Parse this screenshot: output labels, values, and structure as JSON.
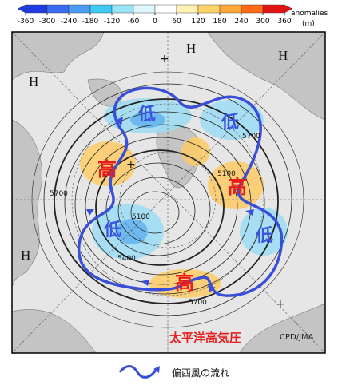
{
  "colorbar": {
    "ticks": [
      -360,
      -300,
      -240,
      -180,
      -120,
      -60,
      0,
      60,
      120,
      180,
      240,
      300,
      360
    ],
    "colors": [
      "#1e3ce0",
      "#3a6cf2",
      "#4a9cf4",
      "#3fcaf2",
      "#9ae4f8",
      "#dff6fd",
      "#ffffff",
      "#fff1b4",
      "#ffd469",
      "#ffa838",
      "#ff6a14",
      "#e41414"
    ],
    "title": "anomalies",
    "unit": "(m)"
  },
  "map": {
    "highs": [
      "H",
      "H",
      "H",
      "H"
    ],
    "lows_jp": [
      "低",
      "低",
      "低",
      "低"
    ],
    "highs_jp": [
      "高",
      "高",
      "高"
    ],
    "contours": [
      "5700",
      "5700",
      "5700",
      "5100",
      "5100",
      "5400"
    ],
    "pacific_high": "太平洋高気圧",
    "credit": "CPD/JMA"
  },
  "legend": {
    "jet_stream": "偏西風の流れ"
  }
}
